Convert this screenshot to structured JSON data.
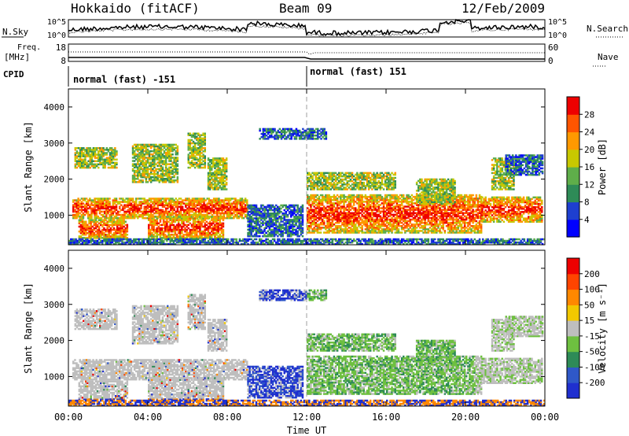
{
  "header": {
    "station": "Hokkaido (fitACF)",
    "beam": "Beam 09",
    "date": "12/Feb/2009"
  },
  "strip_labels": {
    "nsky": "N.Sky",
    "nsky_ticks": [
      "10^5",
      "10^0"
    ],
    "nsearch": "N.Search",
    "nsearch_ticks": [
      "10^5",
      "10^0"
    ],
    "freq": "Freq.",
    "freq_unit": "[MHz]",
    "freq_ticks": [
      "18",
      "8"
    ],
    "nave": "Nave",
    "nave_ticks": [
      "60",
      "0"
    ],
    "cpid": "CPID",
    "cpid_left": "normal (fast) -151",
    "cpid_right": "normal (fast) 151"
  },
  "chart_data": [
    {
      "type": "heatmap",
      "name": "power",
      "ylabel": "Slant Range [km]",
      "xlabel": "Time UT",
      "xlim": [
        0,
        24
      ],
      "ylim": [
        180,
        4500
      ],
      "yticks": [
        1000,
        2000,
        3000,
        4000
      ],
      "xticks": [
        "00:00",
        "04:00",
        "08:00",
        "12:00",
        "16:00",
        "20:00",
        "00:00"
      ],
      "colorbar": {
        "label": "Power [dB]",
        "ticks": [
          "4",
          "8",
          "12",
          "16",
          "20",
          "24",
          "28"
        ],
        "colors": [
          "#0000ff",
          "#1e3fd0",
          "#2e8b57",
          "#5fae4a",
          "#c8c800",
          "#ff9900",
          "#ff5500",
          "#ee0000"
        ]
      }
    },
    {
      "type": "heatmap",
      "name": "velocity",
      "ylabel": "Slant Range [km]",
      "xlabel": "Time UT",
      "xlim": [
        0,
        24
      ],
      "ylim": [
        180,
        4500
      ],
      "yticks": [
        1000,
        2000,
        3000,
        4000
      ],
      "xticks": [
        "00:00",
        "04:00",
        "08:00",
        "12:00",
        "16:00",
        "20:00",
        "00:00"
      ],
      "colorbar": {
        "label": "Velocity [m s⁻¹]",
        "ticks": [
          "200",
          "100",
          "50",
          "15",
          "-15",
          "-50",
          "-100",
          "-200"
        ],
        "colors": [
          "#1f2fcf",
          "#2f58c8",
          "#2e8b57",
          "#6ec040",
          "#bebebe",
          "#f2c800",
          "#ff8800",
          "#ff4400",
          "#ee0000"
        ]
      }
    }
  ],
  "colors": {
    "gray": "#bebebe",
    "frame": "#000000"
  }
}
